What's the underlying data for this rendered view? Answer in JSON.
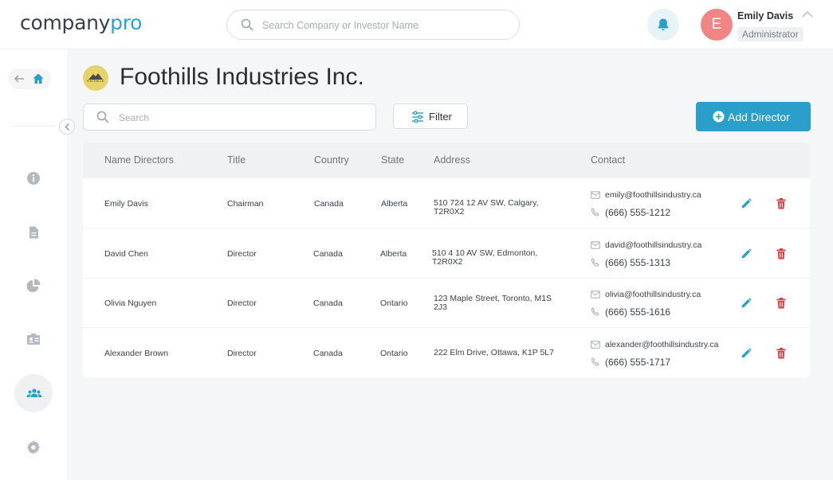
{
  "colors": {
    "accent": "#2a9fc9",
    "danger": "#e0393e",
    "avatar": "#ef8683",
    "logo_badge": "#e6d36a"
  },
  "header": {
    "logo_text": "company",
    "logo_accent": "pro",
    "search_placeholder": "Search Company or Investor Name",
    "user": {
      "initial": "E",
      "name": "Emily Davis",
      "role": "Administrator"
    }
  },
  "sidebar": {
    "items": [
      {
        "name": "info-icon"
      },
      {
        "name": "document-icon"
      },
      {
        "name": "pie-chart-icon"
      },
      {
        "name": "id-card-icon"
      },
      {
        "name": "users-icon",
        "active": true
      },
      {
        "name": "gear-icon"
      }
    ]
  },
  "company": {
    "logo_text": "FOOTHILLS",
    "name": "Foothills Industries Inc."
  },
  "toolbar": {
    "search_placeholder": "Search",
    "filter_label": "Filter",
    "add_label": "Add Director"
  },
  "table": {
    "headers": [
      "Name Directors",
      "Title",
      "Country",
      "State",
      "Address",
      "Contact"
    ],
    "rows": [
      {
        "name": "Emily Davis",
        "title": "Chairman",
        "country": "Canada",
        "state": "Alberta",
        "address": "510 724 12 AV SW, Calgary, T2R0X2",
        "email": "emily@foothillsindustry.ca",
        "phone": "(666) 555-1212"
      },
      {
        "name": "David Chen",
        "title": "Director",
        "country": "Canada",
        "state": "Alberta",
        "address": "510 4 10 AV SW, Edmonton, T2R0X2",
        "email": "david@foothillsindustry.ca",
        "phone": "(666) 555-1313"
      },
      {
        "name": "Olivia Nguyen",
        "title": "Director",
        "country": "Canada",
        "state": "Ontario",
        "address": "123 Maple Street, Toronto, M1S 2J3",
        "email": "olivia@foothillsindustry.ca",
        "phone": "(666) 555-1616"
      },
      {
        "name": "Alexander Brown",
        "title": "Director",
        "country": "Canada",
        "state": "Ontario",
        "address": "222 Elm Drive, Ottawa, K1P 5L7",
        "email": "alexander@foothillsindustry.ca",
        "phone": "(666) 555-1717"
      }
    ]
  }
}
